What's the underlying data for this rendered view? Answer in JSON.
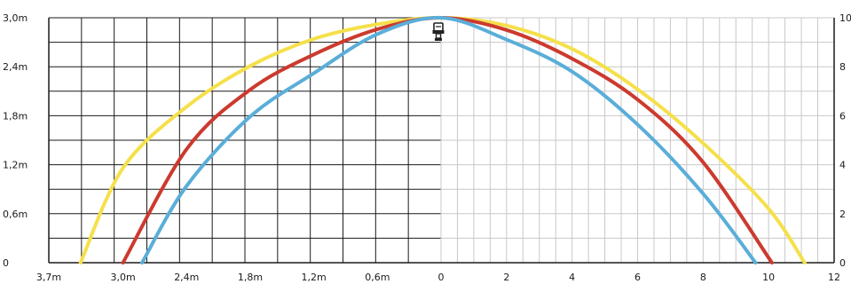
{
  "chart_data": {
    "type": "line",
    "title": "",
    "xlabel": "",
    "ylabel": "",
    "grid": true,
    "legend": "none",
    "left_axis": {
      "unit": "m",
      "x_range": [
        0,
        3.7
      ],
      "x_ticks": [
        {
          "value": 3.7,
          "label": "3,7m"
        },
        {
          "value": 3.0,
          "label": "3,0m"
        },
        {
          "value": 2.4,
          "label": "2,4m"
        },
        {
          "value": 1.8,
          "label": "1,8m"
        },
        {
          "value": 1.2,
          "label": "1,2m"
        },
        {
          "value": 0.6,
          "label": "0,6m"
        },
        {
          "value": 0,
          "label": "0"
        }
      ],
      "y_range": [
        0,
        3.0
      ],
      "y_ticks": [
        {
          "value": 0,
          "label": "0"
        },
        {
          "value": 0.6,
          "label": "0,6m"
        },
        {
          "value": 1.2,
          "label": "1,2m"
        },
        {
          "value": 1.8,
          "label": "1,8m"
        },
        {
          "value": 2.4,
          "label": "2,4m"
        },
        {
          "value": 3.0,
          "label": "3,0m"
        }
      ]
    },
    "right_axis": {
      "x_range": [
        0,
        12
      ],
      "x_ticks": [
        {
          "value": 2,
          "label": "2"
        },
        {
          "value": 4,
          "label": "4"
        },
        {
          "value": 6,
          "label": "6"
        },
        {
          "value": 8,
          "label": "8"
        },
        {
          "value": 10,
          "label": "10"
        },
        {
          "value": 12,
          "label": "12"
        }
      ],
      "y_range": [
        0,
        10
      ],
      "y_ticks": [
        {
          "value": 0,
          "label": "0"
        },
        {
          "value": 2,
          "label": "2"
        },
        {
          "value": 4,
          "label": "4"
        },
        {
          "value": 6,
          "label": "6"
        },
        {
          "value": 8,
          "label": "8"
        },
        {
          "value": 10,
          "label": "10"
        }
      ]
    },
    "series": [
      {
        "color": "#f5e04a",
        "left": {
          "x": [
            0,
            0.6,
            1.2,
            1.8,
            2.4,
            3.0,
            3.4
          ],
          "y": [
            3.0,
            2.92,
            2.74,
            2.41,
            1.91,
            1.16,
            0
          ]
        },
        "right": {
          "x": [
            0,
            2,
            4,
            6,
            8,
            10,
            11.1
          ],
          "y": [
            10.0,
            9.68,
            8.73,
            7.08,
            4.88,
            2.2,
            0
          ]
        }
      },
      {
        "color": "#cc3a2e",
        "left": {
          "x": [
            0,
            0.6,
            1.2,
            1.8,
            2.4,
            3.0
          ],
          "y": [
            3.0,
            2.86,
            2.55,
            2.12,
            1.39,
            0
          ]
        },
        "right": {
          "x": [
            0,
            2,
            4,
            6,
            8,
            10.1
          ],
          "y": [
            10.0,
            9.5,
            8.33,
            6.66,
            4.1,
            0
          ]
        }
      },
      {
        "color": "#5aaed9",
        "left": {
          "x": [
            0,
            0.6,
            1.2,
            1.8,
            2.4,
            2.82
          ],
          "y": [
            3.0,
            2.8,
            2.32,
            1.79,
            0.94,
            0
          ]
        },
        "right": {
          "x": [
            0,
            2,
            4,
            6,
            8,
            9.6
          ],
          "y": [
            10.0,
            9.11,
            7.8,
            5.64,
            2.82,
            0
          ]
        }
      }
    ],
    "icon": "sprinkler-head-icon"
  }
}
